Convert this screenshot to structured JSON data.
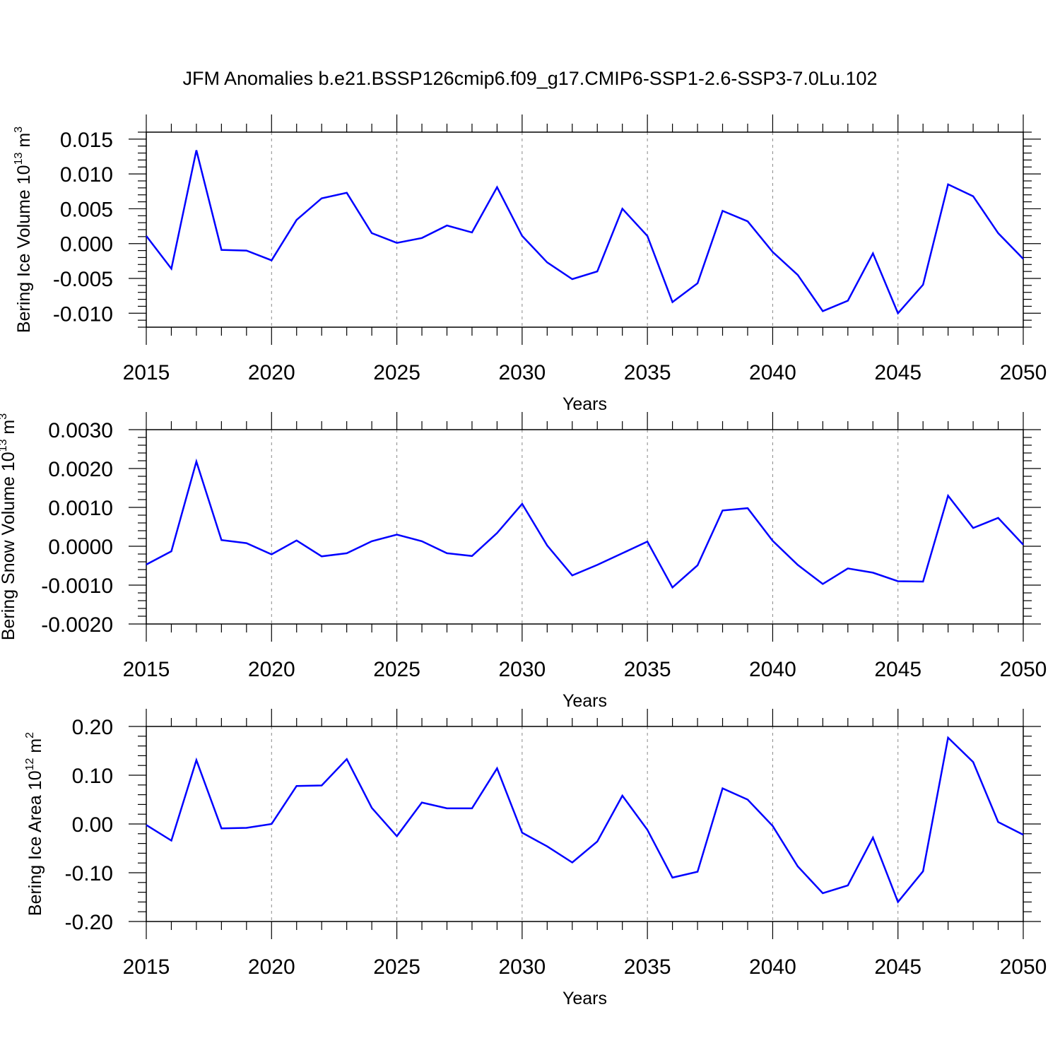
{
  "title": "JFM Anomalies b.e21.BSSP126cmip6.f09_g17.CMIP6-SSP1-2.6-SSP3-7.0Lu.102",
  "colors": {
    "series": "#0000ff",
    "axis": "#000000",
    "grid": "#888888"
  },
  "chart_data": [
    {
      "type": "line",
      "ylabel": {
        "text": "Bering Ice Volume 10",
        "sup": "13",
        "unit": " m",
        "unit_sup": "3"
      },
      "xlabel": "Years",
      "xlim": [
        2015,
        2050
      ],
      "ylim": [
        -0.012,
        0.016
      ],
      "xticks": [
        "2015",
        "2020",
        "2025",
        "2030",
        "2035",
        "2040",
        "2045",
        "2050"
      ],
      "yticks": [
        "0.015",
        "0.010",
        "0.005",
        "0.000",
        "-0.005",
        "-0.010"
      ],
      "ytick_values": [
        0.015,
        0.01,
        0.005,
        0.0,
        -0.005,
        -0.01
      ],
      "grid": "dashed vertical at major x ticks",
      "x": [
        2015,
        2016,
        2017,
        2018,
        2019,
        2020,
        2021,
        2022,
        2023,
        2024,
        2025,
        2026,
        2027,
        2028,
        2029,
        2030,
        2031,
        2032,
        2033,
        2034,
        2035,
        2036,
        2037,
        2038,
        2039,
        2040,
        2041,
        2042,
        2043,
        2044,
        2045,
        2046,
        2047,
        2048,
        2049,
        2050
      ],
      "y": [
        0.0011,
        -0.0036,
        0.0134,
        -0.0009,
        -0.001,
        -0.0024,
        0.0034,
        0.0065,
        0.0073,
        0.0015,
        0.0001,
        0.0008,
        0.0026,
        0.0016,
        0.0081,
        0.0011,
        -0.0027,
        -0.0051,
        -0.004,
        0.005,
        0.0011,
        -0.0084,
        -0.0057,
        0.0047,
        0.0032,
        -0.0012,
        -0.0045,
        -0.0097,
        -0.0082,
        -0.0014,
        -0.01,
        -0.0059,
        0.0085,
        0.0068,
        0.0015,
        -0.0022
      ]
    },
    {
      "type": "line",
      "ylabel": {
        "text": "Bering Snow Volume 10",
        "sup": "13",
        "unit": " m",
        "unit_sup": "3"
      },
      "xlabel": "Years",
      "xlim": [
        2015,
        2050
      ],
      "ylim": [
        -0.002,
        0.003
      ],
      "xticks": [
        "2015",
        "2020",
        "2025",
        "2030",
        "2035",
        "2040",
        "2045",
        "2050"
      ],
      "yticks": [
        "0.0030",
        "0.0020",
        "0.0010",
        "0.0000",
        "-0.0010",
        "-0.0020"
      ],
      "ytick_values": [
        0.003,
        0.002,
        0.001,
        0.0,
        -0.001,
        -0.002
      ],
      "grid": "dashed vertical at major x ticks",
      "x": [
        2015,
        2016,
        2017,
        2018,
        2019,
        2020,
        2021,
        2022,
        2023,
        2024,
        2025,
        2026,
        2027,
        2028,
        2029,
        2030,
        2031,
        2032,
        2033,
        2034,
        2035,
        2036,
        2037,
        2038,
        2039,
        2040,
        2041,
        2042,
        2043,
        2044,
        2045,
        2046,
        2047,
        2048,
        2049,
        2050
      ],
      "y": [
        -0.00047,
        -0.00013,
        0.00218,
        0.00016,
        8e-05,
        -0.00021,
        0.00015,
        -0.00026,
        -0.00018,
        0.00013,
        0.0003,
        0.00013,
        -0.00018,
        -0.00025,
        0.00034,
        0.00109,
        2e-05,
        -0.00075,
        -0.00048,
        -0.00018,
        0.00012,
        -0.00106,
        -0.00049,
        0.00092,
        0.00098,
        0.00014,
        -0.00048,
        -0.00097,
        -0.00057,
        -0.00068,
        -0.0009,
        -0.00091,
        0.0013,
        0.00047,
        0.00073,
        4e-05
      ]
    },
    {
      "type": "line",
      "ylabel": {
        "text": "Bering Ice Area 10",
        "sup": "12",
        "unit": " m",
        "unit_sup": "2"
      },
      "xlabel": "Years",
      "xlim": [
        2015,
        2050
      ],
      "ylim": [
        -0.2,
        0.2
      ],
      "xticks": [
        "2015",
        "2020",
        "2025",
        "2030",
        "2035",
        "2040",
        "2045",
        "2050"
      ],
      "yticks": [
        "0.20",
        "0.10",
        "0.00",
        "-0.10",
        "-0.20"
      ],
      "ytick_values": [
        0.2,
        0.1,
        0.0,
        -0.1,
        -0.2
      ],
      "grid": "dashed vertical at major x ticks",
      "x": [
        2015,
        2016,
        2017,
        2018,
        2019,
        2020,
        2021,
        2022,
        2023,
        2024,
        2025,
        2026,
        2027,
        2028,
        2029,
        2030,
        2031,
        2032,
        2033,
        2034,
        2035,
        2036,
        2037,
        2038,
        2039,
        2040,
        2041,
        2042,
        2043,
        2044,
        2045,
        2046,
        2047,
        2048,
        2049,
        2050
      ],
      "y": [
        -0.002,
        -0.034,
        0.131,
        -0.009,
        -0.008,
        0.0,
        0.078,
        0.079,
        0.133,
        0.033,
        -0.025,
        0.044,
        0.032,
        0.032,
        0.114,
        -0.018,
        -0.046,
        -0.079,
        -0.036,
        0.058,
        -0.012,
        -0.11,
        -0.098,
        0.073,
        0.05,
        -0.004,
        -0.087,
        -0.142,
        -0.126,
        -0.028,
        -0.16,
        -0.097,
        0.177,
        0.127,
        0.004,
        -0.022
      ]
    }
  ]
}
